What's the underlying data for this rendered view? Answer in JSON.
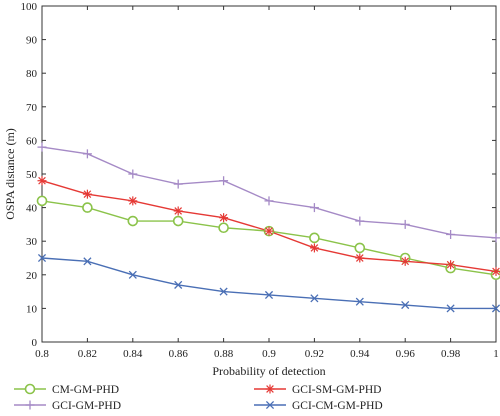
{
  "chart_data": {
    "type": "line",
    "xlabel": "Probability of detection",
    "ylabel": "OSPA distance (m)",
    "xlim": [
      0.8,
      1.0
    ],
    "ylim": [
      0,
      100
    ],
    "x_ticks": [
      "0.8",
      "0.82",
      "0.84",
      "0.86",
      "0.88",
      "0.9",
      "0.92",
      "0.94",
      "0.96",
      "0.98",
      "1"
    ],
    "y_ticks": [
      "0",
      "10",
      "20",
      "30",
      "40",
      "50",
      "60",
      "70",
      "80",
      "90",
      "100"
    ],
    "grid": false,
    "legend_position": "bottom",
    "x": [
      0.8,
      0.82,
      0.84,
      0.86,
      0.88,
      0.9,
      0.92,
      0.94,
      0.96,
      0.98,
      1.0
    ],
    "series": [
      {
        "name": "CM-GM-PHD",
        "color": "#8bc34a",
        "marker": "circle",
        "values": [
          42,
          40,
          36,
          36,
          34,
          33,
          31,
          28,
          25,
          22,
          20
        ]
      },
      {
        "name": "GCI-SM-GM-PHD",
        "color": "#e53935",
        "marker": "asterisk",
        "values": [
          48,
          44,
          42,
          39,
          37,
          33,
          28,
          25,
          24,
          23,
          21
        ]
      },
      {
        "name": "GCI-GM-PHD",
        "color": "#a58ac6",
        "marker": "plus",
        "values": [
          58,
          56,
          50,
          47,
          48,
          42,
          40,
          36,
          35,
          32,
          31
        ]
      },
      {
        "name": "GCI-CM-GM-PHD",
        "color": "#4a6fb5",
        "marker": "cross",
        "values": [
          25,
          24,
          20,
          17,
          15,
          14,
          13,
          12,
          11,
          10,
          10
        ]
      }
    ]
  }
}
